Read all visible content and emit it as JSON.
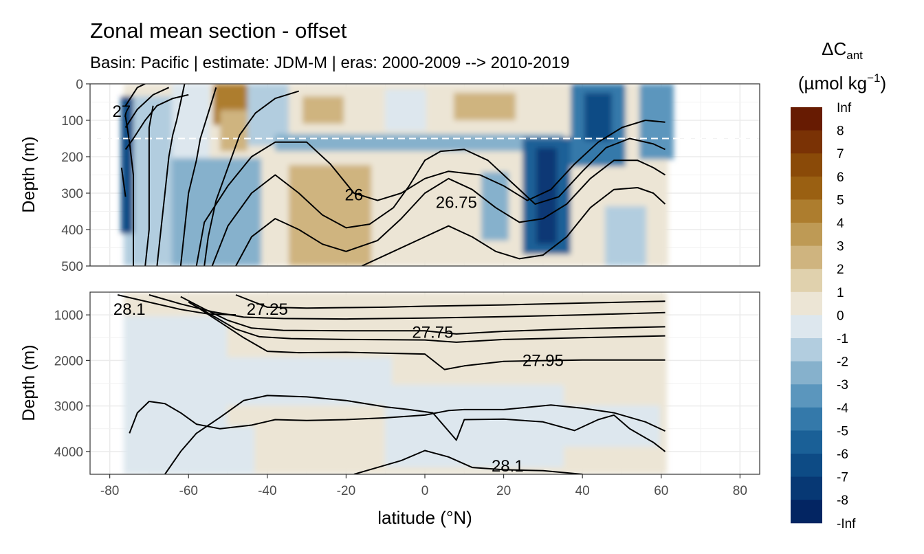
{
  "chart_data": {
    "type": "contour",
    "title": "Zonal mean section - offset",
    "subtitle": "Basin: Pacific | estimate: JDM-M | eras: 2000-2009 --> 2010-2019",
    "xlabel": "latitude (°N)",
    "ylabel": "Depth (m)",
    "x_ticks": [
      -80,
      -60,
      -40,
      -20,
      0,
      20,
      40,
      60,
      80
    ],
    "xlim": [
      -85,
      85
    ],
    "panels": [
      {
        "name": "upper",
        "ylim": [
          0,
          500
        ],
        "y_ticks": [
          0,
          100,
          200,
          300,
          400,
          500
        ],
        "reference_depth": 150
      },
      {
        "name": "lower",
        "ylim": [
          500,
          4500
        ],
        "y_ticks": [
          1000,
          2000,
          3000,
          4000
        ]
      }
    ],
    "legend": {
      "title_main": "ΔC",
      "title_sub": "ant",
      "title_units": "(µmol kg",
      "title_exp": "−1",
      "title_close": ")",
      "breaks": [
        "Inf",
        "8",
        "7",
        "6",
        "5",
        "4",
        "3",
        "2",
        "1",
        "0",
        "-1",
        "-2",
        "-3",
        "-4",
        "-5",
        "-6",
        "-7",
        "-8",
        "-Inf"
      ],
      "colors": [
        "#671b02",
        "#7a3205",
        "#8a4a08",
        "#9a6012",
        "#ad7d2e",
        "#be9a55",
        "#cfb47f",
        "#e0d1ad",
        "#ece5d5",
        "#dde7ee",
        "#b2cddf",
        "#86b1cc",
        "#5b96bd",
        "#3479aa",
        "#1a6097",
        "#0d4b85",
        "#073874",
        "#032562",
        "#001552"
      ]
    },
    "isopycnals": {
      "upper": [
        {
          "label": "26",
          "label_at": [
            -18,
            305
          ],
          "points": [
            [
              -58,
              500
            ],
            [
              -56,
              380
            ],
            [
              -50,
              280
            ],
            [
              -44,
              200
            ],
            [
              -38,
              160
            ],
            [
              -30,
              160
            ],
            [
              -24,
              220
            ],
            [
              -18,
              300
            ],
            [
              -12,
              320
            ],
            [
              -6,
              300
            ],
            [
              0,
              260
            ],
            [
              6,
              240
            ],
            [
              14,
              250
            ],
            [
              20,
              280
            ],
            [
              26,
              320
            ],
            [
              32,
              290
            ],
            [
              38,
              220
            ],
            [
              44,
              160
            ],
            [
              50,
              120
            ],
            [
              56,
              100
            ],
            [
              61,
              105
            ]
          ]
        },
        {
          "label": "26.75",
          "label_at": [
            8,
            325
          ],
          "points": [
            [
              -54,
              500
            ],
            [
              -50,
              390
            ],
            [
              -44,
              300
            ],
            [
              -38,
              250
            ],
            [
              -32,
              300
            ],
            [
              -26,
              360
            ],
            [
              -20,
              395
            ],
            [
              -14,
              385
            ],
            [
              -8,
              340
            ],
            [
              -4,
              280
            ],
            [
              0,
              210
            ],
            [
              4,
              185
            ],
            [
              10,
              180
            ],
            [
              16,
              210
            ],
            [
              22,
              270
            ],
            [
              28,
              330
            ],
            [
              34,
              310
            ],
            [
              40,
              240
            ],
            [
              46,
              175
            ],
            [
              52,
              150
            ],
            [
              58,
              165
            ],
            [
              61,
              180
            ]
          ]
        },
        {
          "label": "",
          "label_at": null,
          "points": [
            [
              -48,
              500
            ],
            [
              -44,
              420
            ],
            [
              -38,
              370
            ],
            [
              -32,
              400
            ],
            [
              -26,
              440
            ],
            [
              -20,
              460
            ],
            [
              -12,
              430
            ],
            [
              -6,
              370
            ],
            [
              0,
              300
            ],
            [
              6,
              260
            ],
            [
              12,
              290
            ],
            [
              18,
              340
            ],
            [
              24,
              380
            ],
            [
              30,
              370
            ],
            [
              36,
              330
            ],
            [
              42,
              260
            ],
            [
              48,
              210
            ],
            [
              54,
              210
            ],
            [
              58,
              230
            ],
            [
              61,
              250
            ]
          ]
        },
        {
          "label": "",
          "label_at": null,
          "points": [
            [
              -16,
              500
            ],
            [
              -8,
              460
            ],
            [
              0,
              420
            ],
            [
              6,
              390
            ],
            [
              12,
              420
            ],
            [
              18,
              460
            ],
            [
              24,
              480
            ],
            [
              30,
              470
            ],
            [
              36,
              420
            ],
            [
              42,
              340
            ],
            [
              48,
              290
            ],
            [
              54,
              285
            ],
            [
              58,
              300
            ],
            [
              61,
              330
            ]
          ]
        },
        {
          "label": "",
          "label_at": null,
          "points": [
            [
              -68,
              500
            ],
            [
              -67,
              400
            ],
            [
              -66,
              300
            ],
            [
              -65,
              200
            ],
            [
              -64,
              140
            ],
            [
              -63,
              100
            ],
            [
              -62,
              50
            ],
            [
              -61,
              0
            ]
          ]
        },
        {
          "label": "",
          "label_at": null,
          "points": [
            [
              -71,
              500
            ],
            [
              -70,
              400
            ],
            [
              -70,
              300
            ],
            [
              -70,
              200
            ],
            [
              -70,
              120
            ],
            [
              -69,
              60
            ]
          ]
        },
        {
          "label": "",
          "label_at": null,
          "points": [
            [
              -74,
              500
            ],
            [
              -74,
              360
            ],
            [
              -74,
              250
            ],
            [
              -75,
              160
            ],
            [
              -76,
              90
            ]
          ]
        },
        {
          "label": "",
          "label_at": null,
          "points": [
            [
              -76,
              310
            ],
            [
              -77,
              230
            ]
          ]
        },
        {
          "label": "27",
          "label_at": [
            -77,
            75
          ],
          "points": [
            [
              -76,
              180
            ],
            [
              -74,
              150
            ],
            [
              -71,
              100
            ],
            [
              -68,
              60
            ],
            [
              -64,
              40
            ],
            [
              -60,
              30
            ]
          ]
        },
        {
          "label": "",
          "label_at": null,
          "points": [
            [
              -76,
              120
            ],
            [
              -73,
              70
            ],
            [
              -69,
              30
            ],
            [
              -65,
              10
            ]
          ]
        },
        {
          "label": "",
          "label_at": null,
          "points": [
            [
              -76,
              60
            ],
            [
              -73,
              10
            ],
            [
              -71,
              0
            ]
          ]
        },
        {
          "label": "",
          "label_at": null,
          "points": [
            [
              -62,
              500
            ],
            [
              -61,
              400
            ],
            [
              -60,
              300
            ],
            [
              -58,
              210
            ],
            [
              -57,
              150
            ],
            [
              -55,
              80
            ],
            [
              -53,
              10
            ]
          ]
        },
        {
          "label": "",
          "label_at": null,
          "points": [
            [
              -56,
              500
            ],
            [
              -55,
              420
            ],
            [
              -53,
              320
            ],
            [
              -50,
              230
            ],
            [
              -47,
              140
            ],
            [
              -43,
              80
            ],
            [
              -38,
              40
            ],
            [
              -32,
              20
            ]
          ]
        }
      ],
      "lower": [
        {
          "label": "28.1",
          "label_at": [
            -75,
            880
          ],
          "points": [
            [
              -78,
              560
            ],
            [
              -70,
              720
            ],
            [
              -62,
              880
            ],
            [
              -55,
              980
            ],
            [
              -48,
              1000
            ]
          ]
        },
        {
          "label": "27.25",
          "label_at": [
            -40,
            880
          ],
          "points": [
            [
              -48,
              560
            ],
            [
              -40,
              830
            ],
            [
              -30,
              850
            ],
            [
              -20,
              840
            ],
            [
              -10,
              830
            ],
            [
              0,
              810
            ],
            [
              20,
              780
            ],
            [
              40,
              740
            ],
            [
              61,
              700
            ]
          ]
        },
        {
          "label": "",
          "label_at": null,
          "points": [
            [
              -70,
              560
            ],
            [
              -62,
              760
            ],
            [
              -54,
              930
            ],
            [
              -46,
              1050
            ],
            [
              -36,
              1080
            ],
            [
              -20,
              1090
            ],
            [
              0,
              1070
            ],
            [
              20,
              1040
            ],
            [
              40,
              1000
            ],
            [
              61,
              950
            ]
          ]
        },
        {
          "label": "27.75",
          "label_at": [
            2,
            1380
          ],
          "points": [
            [
              -62,
              600
            ],
            [
              -56,
              870
            ],
            [
              -50,
              1120
            ],
            [
              -44,
              1290
            ],
            [
              -36,
              1340
            ],
            [
              -20,
              1350
            ],
            [
              0,
              1350
            ],
            [
              8,
              1420
            ],
            [
              20,
              1360
            ],
            [
              40,
              1300
            ],
            [
              61,
              1260
            ]
          ]
        },
        {
          "label": "",
          "label_at": null,
          "points": [
            [
              -60,
              720
            ],
            [
              -54,
              1010
            ],
            [
              -48,
              1310
            ],
            [
              -42,
              1480
            ],
            [
              -34,
              1520
            ],
            [
              -20,
              1540
            ],
            [
              0,
              1550
            ],
            [
              8,
              1600
            ],
            [
              20,
              1540
            ],
            [
              40,
              1500
            ],
            [
              61,
              1460
            ]
          ]
        },
        {
          "label": "27.95",
          "label_at": [
            30,
            2000
          ],
          "points": [
            [
              -58,
              820
            ],
            [
              -52,
              1160
            ],
            [
              -46,
              1500
            ],
            [
              -40,
              1800
            ],
            [
              -32,
              1830
            ],
            [
              -20,
              1820
            ],
            [
              0,
              1860
            ],
            [
              5,
              2200
            ],
            [
              10,
              2120
            ],
            [
              20,
              2020
            ],
            [
              40,
              1990
            ],
            [
              61,
              1990
            ]
          ]
        },
        {
          "label": "",
          "label_at": null,
          "points": [
            [
              -75,
              3600
            ],
            [
              -73,
              3150
            ],
            [
              -70,
              2900
            ],
            [
              -66,
              2950
            ],
            [
              -62,
              3150
            ],
            [
              -58,
              3400
            ],
            [
              -52,
              3500
            ],
            [
              -44,
              3420
            ],
            [
              -38,
              3300
            ],
            [
              -30,
              3320
            ],
            [
              -20,
              3300
            ],
            [
              -10,
              3260
            ],
            [
              0,
              3200
            ],
            [
              6,
              3100
            ],
            [
              10,
              3080
            ],
            [
              20,
              3080
            ],
            [
              32,
              2980
            ],
            [
              40,
              3050
            ],
            [
              48,
              3150
            ],
            [
              56,
              3350
            ],
            [
              61,
              3550
            ]
          ]
        },
        {
          "label": "",
          "label_at": null,
          "points": [
            [
              -66,
              4500
            ],
            [
              -62,
              4000
            ],
            [
              -58,
              3600
            ],
            [
              -52,
              3250
            ],
            [
              -46,
              2880
            ],
            [
              -40,
              2770
            ],
            [
              -30,
              2800
            ],
            [
              -20,
              2880
            ],
            [
              -10,
              3020
            ],
            [
              -4,
              3080
            ],
            [
              2,
              3150
            ],
            [
              6,
              3550
            ],
            [
              8,
              3750
            ],
            [
              10,
              3300
            ],
            [
              20,
              3290
            ],
            [
              30,
              3350
            ],
            [
              38,
              3540
            ],
            [
              44,
              3300
            ],
            [
              48,
              3200
            ],
            [
              52,
              3500
            ],
            [
              58,
              3800
            ],
            [
              61,
              4000
            ]
          ]
        },
        {
          "label": "28.1",
          "label_at": [
            21,
            4320
          ],
          "points": [
            [
              -18,
              4500
            ],
            [
              -12,
              4350
            ],
            [
              -6,
              4200
            ],
            [
              0,
              3980
            ],
            [
              6,
              4120
            ],
            [
              12,
              4350
            ],
            [
              20,
              4400
            ],
            [
              30,
              4420
            ],
            [
              40,
              4500
            ]
          ]
        }
      ]
    }
  }
}
